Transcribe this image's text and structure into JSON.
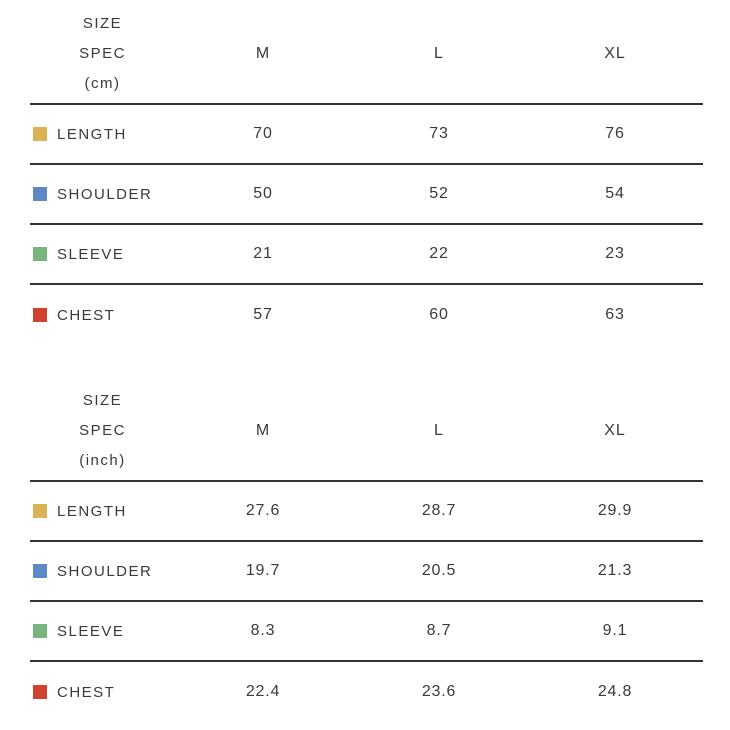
{
  "colors": {
    "length": "#dcb256",
    "shoulder": "#5c88c5",
    "sleeve": "#77b47e",
    "chest": "#d2432f",
    "rule": "#333333",
    "text": "#3a3a3a"
  },
  "tables": [
    {
      "header": {
        "title_lines": [
          "SIZE",
          "SPEC",
          "(cm)"
        ],
        "columns": [
          "M",
          "L",
          "XL"
        ]
      },
      "rows": [
        {
          "label": "LENGTH",
          "swatch": "length",
          "values": [
            "70",
            "73",
            "76"
          ]
        },
        {
          "label": "SHOULDER",
          "swatch": "shoulder",
          "values": [
            "50",
            "52",
            "54"
          ]
        },
        {
          "label": "SLEEVE",
          "swatch": "sleeve",
          "values": [
            "21",
            "22",
            "23"
          ]
        },
        {
          "label": "CHEST",
          "swatch": "chest",
          "values": [
            "57",
            "60",
            "63"
          ]
        }
      ]
    },
    {
      "header": {
        "title_lines": [
          "SIZE",
          "SPEC",
          "(inch)"
        ],
        "columns": [
          "M",
          "L",
          "XL"
        ]
      },
      "rows": [
        {
          "label": "LENGTH",
          "swatch": "length",
          "values": [
            "27.6",
            "28.7",
            "29.9"
          ]
        },
        {
          "label": "SHOULDER",
          "swatch": "shoulder",
          "values": [
            "19.7",
            "20.5",
            "21.3"
          ]
        },
        {
          "label": "SLEEVE",
          "swatch": "sleeve",
          "values": [
            "8.3",
            "8.7",
            "9.1"
          ]
        },
        {
          "label": "CHEST",
          "swatch": "chest",
          "values": [
            "22.4",
            "23.6",
            "24.8"
          ]
        }
      ]
    }
  ],
  "chart_data": [
    {
      "type": "table",
      "title": "SIZE SPEC (cm)",
      "columns": [
        "SIZE SPEC (cm)",
        "M",
        "L",
        "XL"
      ],
      "rows": [
        [
          "LENGTH",
          70,
          73,
          76
        ],
        [
          "SHOULDER",
          50,
          52,
          54
        ],
        [
          "SLEEVE",
          21,
          22,
          23
        ],
        [
          "CHEST",
          57,
          60,
          63
        ]
      ],
      "row_marker_colors": {
        "LENGTH": "#dcb256",
        "SHOULDER": "#5c88c5",
        "SLEEVE": "#77b47e",
        "CHEST": "#d2432f"
      }
    },
    {
      "type": "table",
      "title": "SIZE SPEC (inch)",
      "columns": [
        "SIZE SPEC (inch)",
        "M",
        "L",
        "XL"
      ],
      "rows": [
        [
          "LENGTH",
          27.6,
          28.7,
          29.9
        ],
        [
          "SHOULDER",
          19.7,
          20.5,
          21.3
        ],
        [
          "SLEEVE",
          8.3,
          8.7,
          9.1
        ],
        [
          "CHEST",
          22.4,
          23.6,
          24.8
        ]
      ],
      "row_marker_colors": {
        "LENGTH": "#dcb256",
        "SHOULDER": "#5c88c5",
        "SLEEVE": "#77b47e",
        "CHEST": "#d2432f"
      }
    }
  ]
}
